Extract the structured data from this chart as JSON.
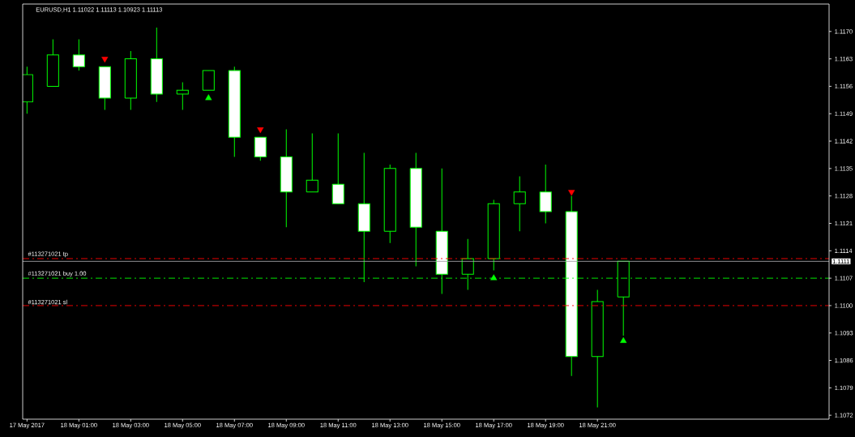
{
  "chart_data": {
    "type": "candlestick",
    "title": "EURUSD,H1  1.11022 1.11113 1.10923 1.11113",
    "color": "#00ff00",
    "x": [
      "2017-05-17T23:00",
      "2017-05-18T00:00",
      "2017-05-18T01:00",
      "2017-05-18T02:00",
      "2017-05-18T03:00",
      "2017-05-18T04:00",
      "2017-05-18T05:00",
      "2017-05-18T06:00",
      "2017-05-18T07:00",
      "2017-05-18T08:00",
      "2017-05-18T09:00",
      "2017-05-18T10:00",
      "2017-05-18T11:00",
      "2017-05-18T12:00",
      "2017-05-18T13:00",
      "2017-05-18T14:00",
      "2017-05-18T15:00",
      "2017-05-18T16:00",
      "2017-05-18T17:00",
      "2017-05-18T18:00",
      "2017-05-18T19:00",
      "2017-05-18T20:00",
      "2017-05-18T21:00",
      "2017-05-18T22:00"
    ],
    "xlim": [
      "2017-05-17T22:50",
      "2017-05-19T05:56"
    ],
    "xticks": [
      {
        "value": "2017-05-17T23:00",
        "label": "17 May 2017"
      },
      {
        "value": "2017-05-18T01:00",
        "label": "18 May 01:00"
      },
      {
        "value": "2017-05-18T03:00",
        "label": "18 May 03:00"
      },
      {
        "value": "2017-05-18T05:00",
        "label": "18 May 05:00"
      },
      {
        "value": "2017-05-18T07:00",
        "label": "18 May 07:00"
      },
      {
        "value": "2017-05-18T09:00",
        "label": "18 May 09:00"
      },
      {
        "value": "2017-05-18T11:00",
        "label": "18 May 11:00"
      },
      {
        "value": "2017-05-18T13:00",
        "label": "18 May 13:00"
      },
      {
        "value": "2017-05-18T15:00",
        "label": "18 May 15:00"
      },
      {
        "value": "2017-05-18T17:00",
        "label": "18 May 17:00"
      },
      {
        "value": "2017-05-18T19:00",
        "label": "18 May 19:00"
      },
      {
        "value": "2017-05-18T21:00",
        "label": "18 May 21:00"
      }
    ],
    "ohlc": [
      [
        1.1152,
        1.1161,
        1.1149,
        1.1159
      ],
      [
        1.1156,
        1.1168,
        1.1156,
        1.1164
      ],
      [
        1.1164,
        1.1168,
        1.116,
        1.1161
      ],
      [
        1.1161,
        1.1161,
        1.115,
        1.1153
      ],
      [
        1.1153,
        1.1165,
        1.115,
        1.1163
      ],
      [
        1.1163,
        1.1171,
        1.1152,
        1.1154
      ],
      [
        1.1154,
        1.1157,
        1.115,
        1.1155
      ],
      [
        1.1155,
        1.116,
        1.1155,
        1.116
      ],
      [
        1.116,
        1.1161,
        1.1138,
        1.1143
      ],
      [
        1.1143,
        1.1143,
        1.1137,
        1.1138
      ],
      [
        1.1138,
        1.1145,
        1.112,
        1.1129
      ],
      [
        1.1129,
        1.1144,
        1.1129,
        1.1132
      ],
      [
        1.1131,
        1.1144,
        1.1126,
        1.1126
      ],
      [
        1.1126,
        1.1139,
        1.1106,
        1.1119
      ],
      [
        1.1119,
        1.1136,
        1.1116,
        1.1135
      ],
      [
        1.1135,
        1.1139,
        1.111,
        1.112
      ],
      [
        1.1119,
        1.1135,
        1.1103,
        1.1108
      ],
      [
        1.1108,
        1.1117,
        1.1104,
        1.1112
      ],
      [
        1.1112,
        1.1127,
        1.1109,
        1.1126
      ],
      [
        1.1126,
        1.1133,
        1.1119,
        1.1129
      ],
      [
        1.1129,
        1.1136,
        1.1121,
        1.1124
      ],
      [
        1.1124,
        1.1128,
        1.1082,
        1.1087
      ],
      [
        1.1087,
        1.1104,
        1.1074,
        1.1101
      ],
      [
        1.11022,
        1.11113,
        1.10923,
        1.11113
      ]
    ],
    "series": [
      {
        "type": "scatter",
        "marker": "triangle",
        "color": "#ff0000",
        "values": [
          null,
          null,
          null,
          1.1163,
          null,
          null,
          null,
          null,
          null,
          1.1145,
          null,
          null,
          null,
          null,
          null,
          null,
          null,
          null,
          null,
          null,
          null,
          1.1129,
          null,
          null
        ]
      },
      {
        "type": "scatter",
        "marker": "triangle",
        "color": "#00ff00",
        "values": [
          null,
          null,
          null,
          null,
          null,
          null,
          null,
          1.1153,
          null,
          null,
          null,
          null,
          null,
          null,
          null,
          null,
          null,
          null,
          1.1107,
          null,
          null,
          null,
          null,
          1.1091
        ]
      }
    ],
    "ylim": [
      1.1071,
      1.1177
    ],
    "yticks": [
      1.1072,
      1.1079,
      1.1086,
      1.1093,
      {
        "value": 1.11,
        "label": "1.1100"
      },
      1.1107,
      1.1114,
      1.1121,
      1.1128,
      1.1135,
      1.1142,
      1.1149,
      1.1156,
      1.1163,
      {
        "value": 1.117,
        "label": "1.1170"
      }
    ],
    "ref_lines": [
      {
        "axis": "y",
        "value": 1.1112,
        "label": "#113271021 tp",
        "color": "#ff0000",
        "line_style": "dashed"
      },
      {
        "axis": "y",
        "value": 1.11113,
        "label": "1.1111",
        "color": "#a0a0a4",
        "line_style": "solid"
      },
      {
        "axis": "y",
        "value": 1.1107,
        "label": "#113271021 buy 1.00",
        "color": "#00ff00",
        "line_style": "dashed"
      },
      {
        "axis": "y",
        "value": 1.11,
        "label": "#113271021 sl",
        "color": "#ff0000",
        "line_style": "dashed"
      }
    ],
    "grid": false
  }
}
